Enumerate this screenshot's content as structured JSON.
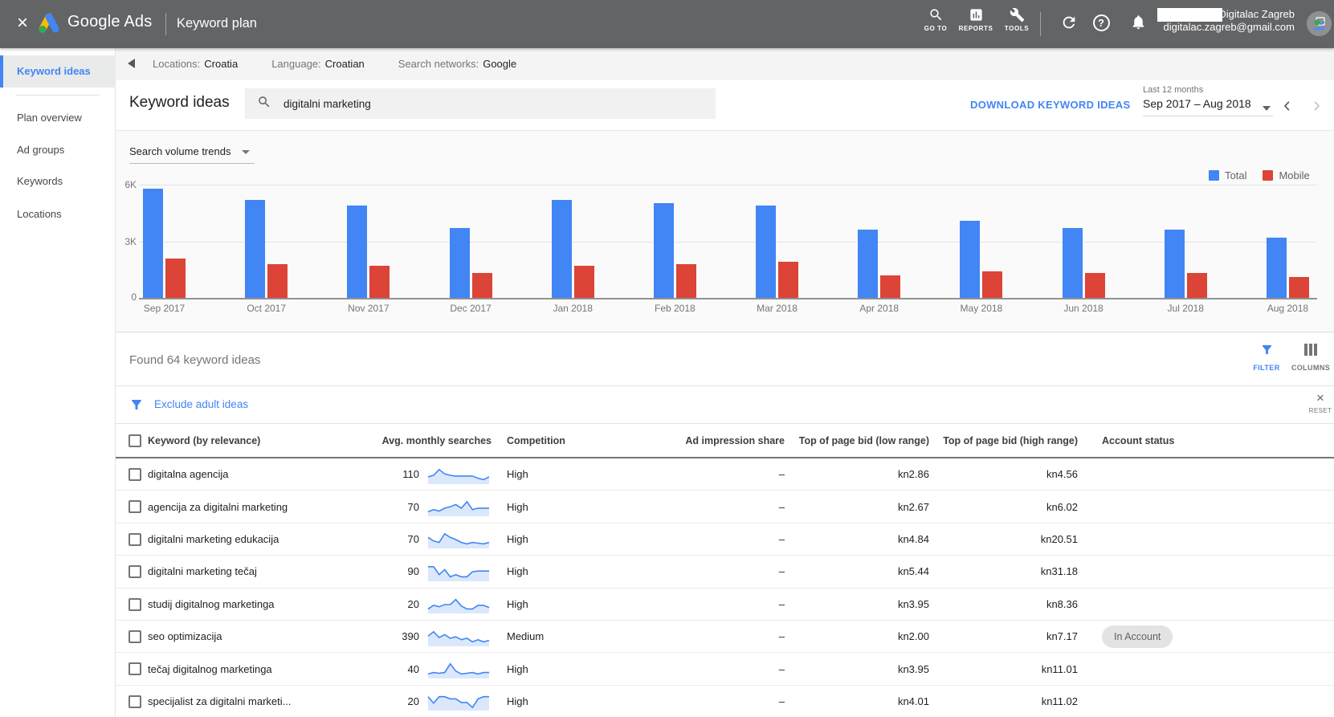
{
  "topbar": {
    "close_glyph": "×",
    "app_name": "Google Ads",
    "page_title": "Keyword plan",
    "nav": [
      {
        "label": "GO TO"
      },
      {
        "label": "REPORTS"
      },
      {
        "label": "TOOLS"
      }
    ],
    "help_glyph": "?",
    "account": {
      "name": "Digitalac Zagreb",
      "email": "digitalac.zagreb@gmail.com"
    }
  },
  "breadcrumb": {
    "items": [
      {
        "label": "Locations:",
        "value": "Croatia"
      },
      {
        "label": "Language:",
        "value": "Croatian"
      },
      {
        "label": "Search networks:",
        "value": "Google"
      }
    ]
  },
  "sidebar": {
    "items": [
      {
        "label": "Keyword ideas",
        "selected": true
      },
      {
        "label": "Plan overview"
      },
      {
        "label": "Ad groups"
      },
      {
        "label": "Keywords"
      },
      {
        "label": "Locations"
      }
    ]
  },
  "toolbar": {
    "title": "Keyword ideas",
    "search_value": "digitalni marketing",
    "download_label": "DOWNLOAD KEYWORD IDEAS",
    "date_range": {
      "preset": "Last 12 months",
      "value": "Sep 2017 – Aug 2018"
    }
  },
  "chart_data": {
    "type": "bar",
    "title": "Search volume trends",
    "categories": [
      "Sep 2017",
      "Oct 2017",
      "Nov 2017",
      "Dec 2017",
      "Jan 2018",
      "Feb 2018",
      "Mar 2018",
      "Apr 2018",
      "May 2018",
      "Jun 2018",
      "Jul 2018",
      "Aug 2018"
    ],
    "series": [
      {
        "name": "Total",
        "color": "#4285f4",
        "values": [
          5.8,
          5.2,
          4.9,
          3.7,
          5.2,
          5.0,
          4.9,
          3.6,
          4.1,
          3.7,
          3.6,
          3.2
        ]
      },
      {
        "name": "Mobile",
        "color": "#db4437",
        "values": [
          2.1,
          1.8,
          1.7,
          1.3,
          1.7,
          1.8,
          1.9,
          1.2,
          1.4,
          1.3,
          1.3,
          1.1
        ]
      }
    ],
    "unit": "K",
    "ylim": [
      0,
      6
    ],
    "ytick_labels": [
      "6K",
      "3K",
      "0"
    ],
    "grid": true,
    "legend_position": "top-right"
  },
  "results_bar": {
    "found_text": "Found 64 keyword ideas",
    "filter_label": "FILTER",
    "columns_label": "COLUMNS"
  },
  "filter_bar": {
    "chip_label": "Exclude adult ideas",
    "reset_glyph": "×",
    "reset_label": "RESET"
  },
  "table": {
    "trend_line_color": "#4285f4",
    "trend_fill_color": "#dbe8fb",
    "headers": [
      "Keyword (by relevance)",
      "Avg. monthly searches",
      "Competition",
      "Ad impression share",
      "Top of page bid (low range)",
      "Top of page bid (high range)",
      "Account status"
    ],
    "rows": [
      {
        "keyword": "digitalna agencija",
        "avg_monthly_searches": "110",
        "trend": [
          4,
          5,
          9,
          6,
          5,
          4.5,
          4.5,
          4.5,
          4.5,
          3,
          2,
          4
        ],
        "competition": "High",
        "ad_impression_share": "–",
        "top_of_page_bid_low": "kn2.86",
        "top_of_page_bid_high": "kn4.56",
        "account_status": ""
      },
      {
        "keyword": "agencija za digitalni marketing",
        "avg_monthly_searches": "70",
        "trend": [
          2,
          3.5,
          2.5,
          4.5,
          5.5,
          7,
          4.5,
          9,
          3.5,
          4.5,
          4.5,
          4.5
        ],
        "competition": "High",
        "ad_impression_share": "–",
        "top_of_page_bid_low": "kn2.67",
        "top_of_page_bid_high": "kn6.02",
        "account_status": ""
      },
      {
        "keyword": "digitalni marketing edukacija",
        "avg_monthly_searches": "70",
        "trend": [
          6.5,
          4,
          3,
          9,
          6.5,
          5,
          3,
          2,
          3,
          2.5,
          2,
          3
        ],
        "competition": "High",
        "ad_impression_share": "–",
        "top_of_page_bid_low": "kn4.84",
        "top_of_page_bid_high": "kn20.51",
        "account_status": ""
      },
      {
        "keyword": "digitalni marketing tečaj",
        "avg_monthly_searches": "90",
        "trend": [
          9,
          9,
          3.5,
          7,
          2,
          3.5,
          2,
          2,
          5.5,
          6,
          6,
          6
        ],
        "competition": "High",
        "ad_impression_share": "–",
        "top_of_page_bid_low": "kn5.44",
        "top_of_page_bid_high": "kn31.18",
        "account_status": ""
      },
      {
        "keyword": "studij digitalnog marketinga",
        "avg_monthly_searches": "20",
        "trend": [
          2,
          4.5,
          3.5,
          5,
          5,
          8.5,
          4,
          2,
          2,
          4.5,
          4.5,
          3
        ],
        "competition": "High",
        "ad_impression_share": "–",
        "top_of_page_bid_low": "kn3.95",
        "top_of_page_bid_high": "kn8.36",
        "account_status": ""
      },
      {
        "keyword": "seo optimizacija",
        "avg_monthly_searches": "390",
        "trend": [
          6,
          9,
          5,
          7,
          4.5,
          5.5,
          3.5,
          4.5,
          2,
          3.5,
          2,
          3
        ],
        "competition": "Medium",
        "ad_impression_share": "–",
        "top_of_page_bid_low": "kn2.00",
        "top_of_page_bid_high": "kn7.17",
        "account_status": "In Account"
      },
      {
        "keyword": "tečaj digitalnog marketinga",
        "avg_monthly_searches": "40",
        "trend": [
          2,
          3,
          2.5,
          3,
          9,
          4,
          2,
          2.5,
          3,
          2,
          3,
          3
        ],
        "competition": "High",
        "ad_impression_share": "–",
        "top_of_page_bid_low": "kn3.95",
        "top_of_page_bid_high": "kn11.01",
        "account_status": ""
      },
      {
        "keyword": "specijalist za digitalni marketi...",
        "avg_monthly_searches": "20",
        "trend": [
          8.5,
          4,
          8.5,
          8.5,
          7,
          7,
          4.5,
          4.5,
          1,
          7,
          8.5,
          8.5
        ],
        "competition": "High",
        "ad_impression_share": "–",
        "top_of_page_bid_low": "kn4.01",
        "top_of_page_bid_high": "kn11.02",
        "account_status": ""
      }
    ]
  }
}
